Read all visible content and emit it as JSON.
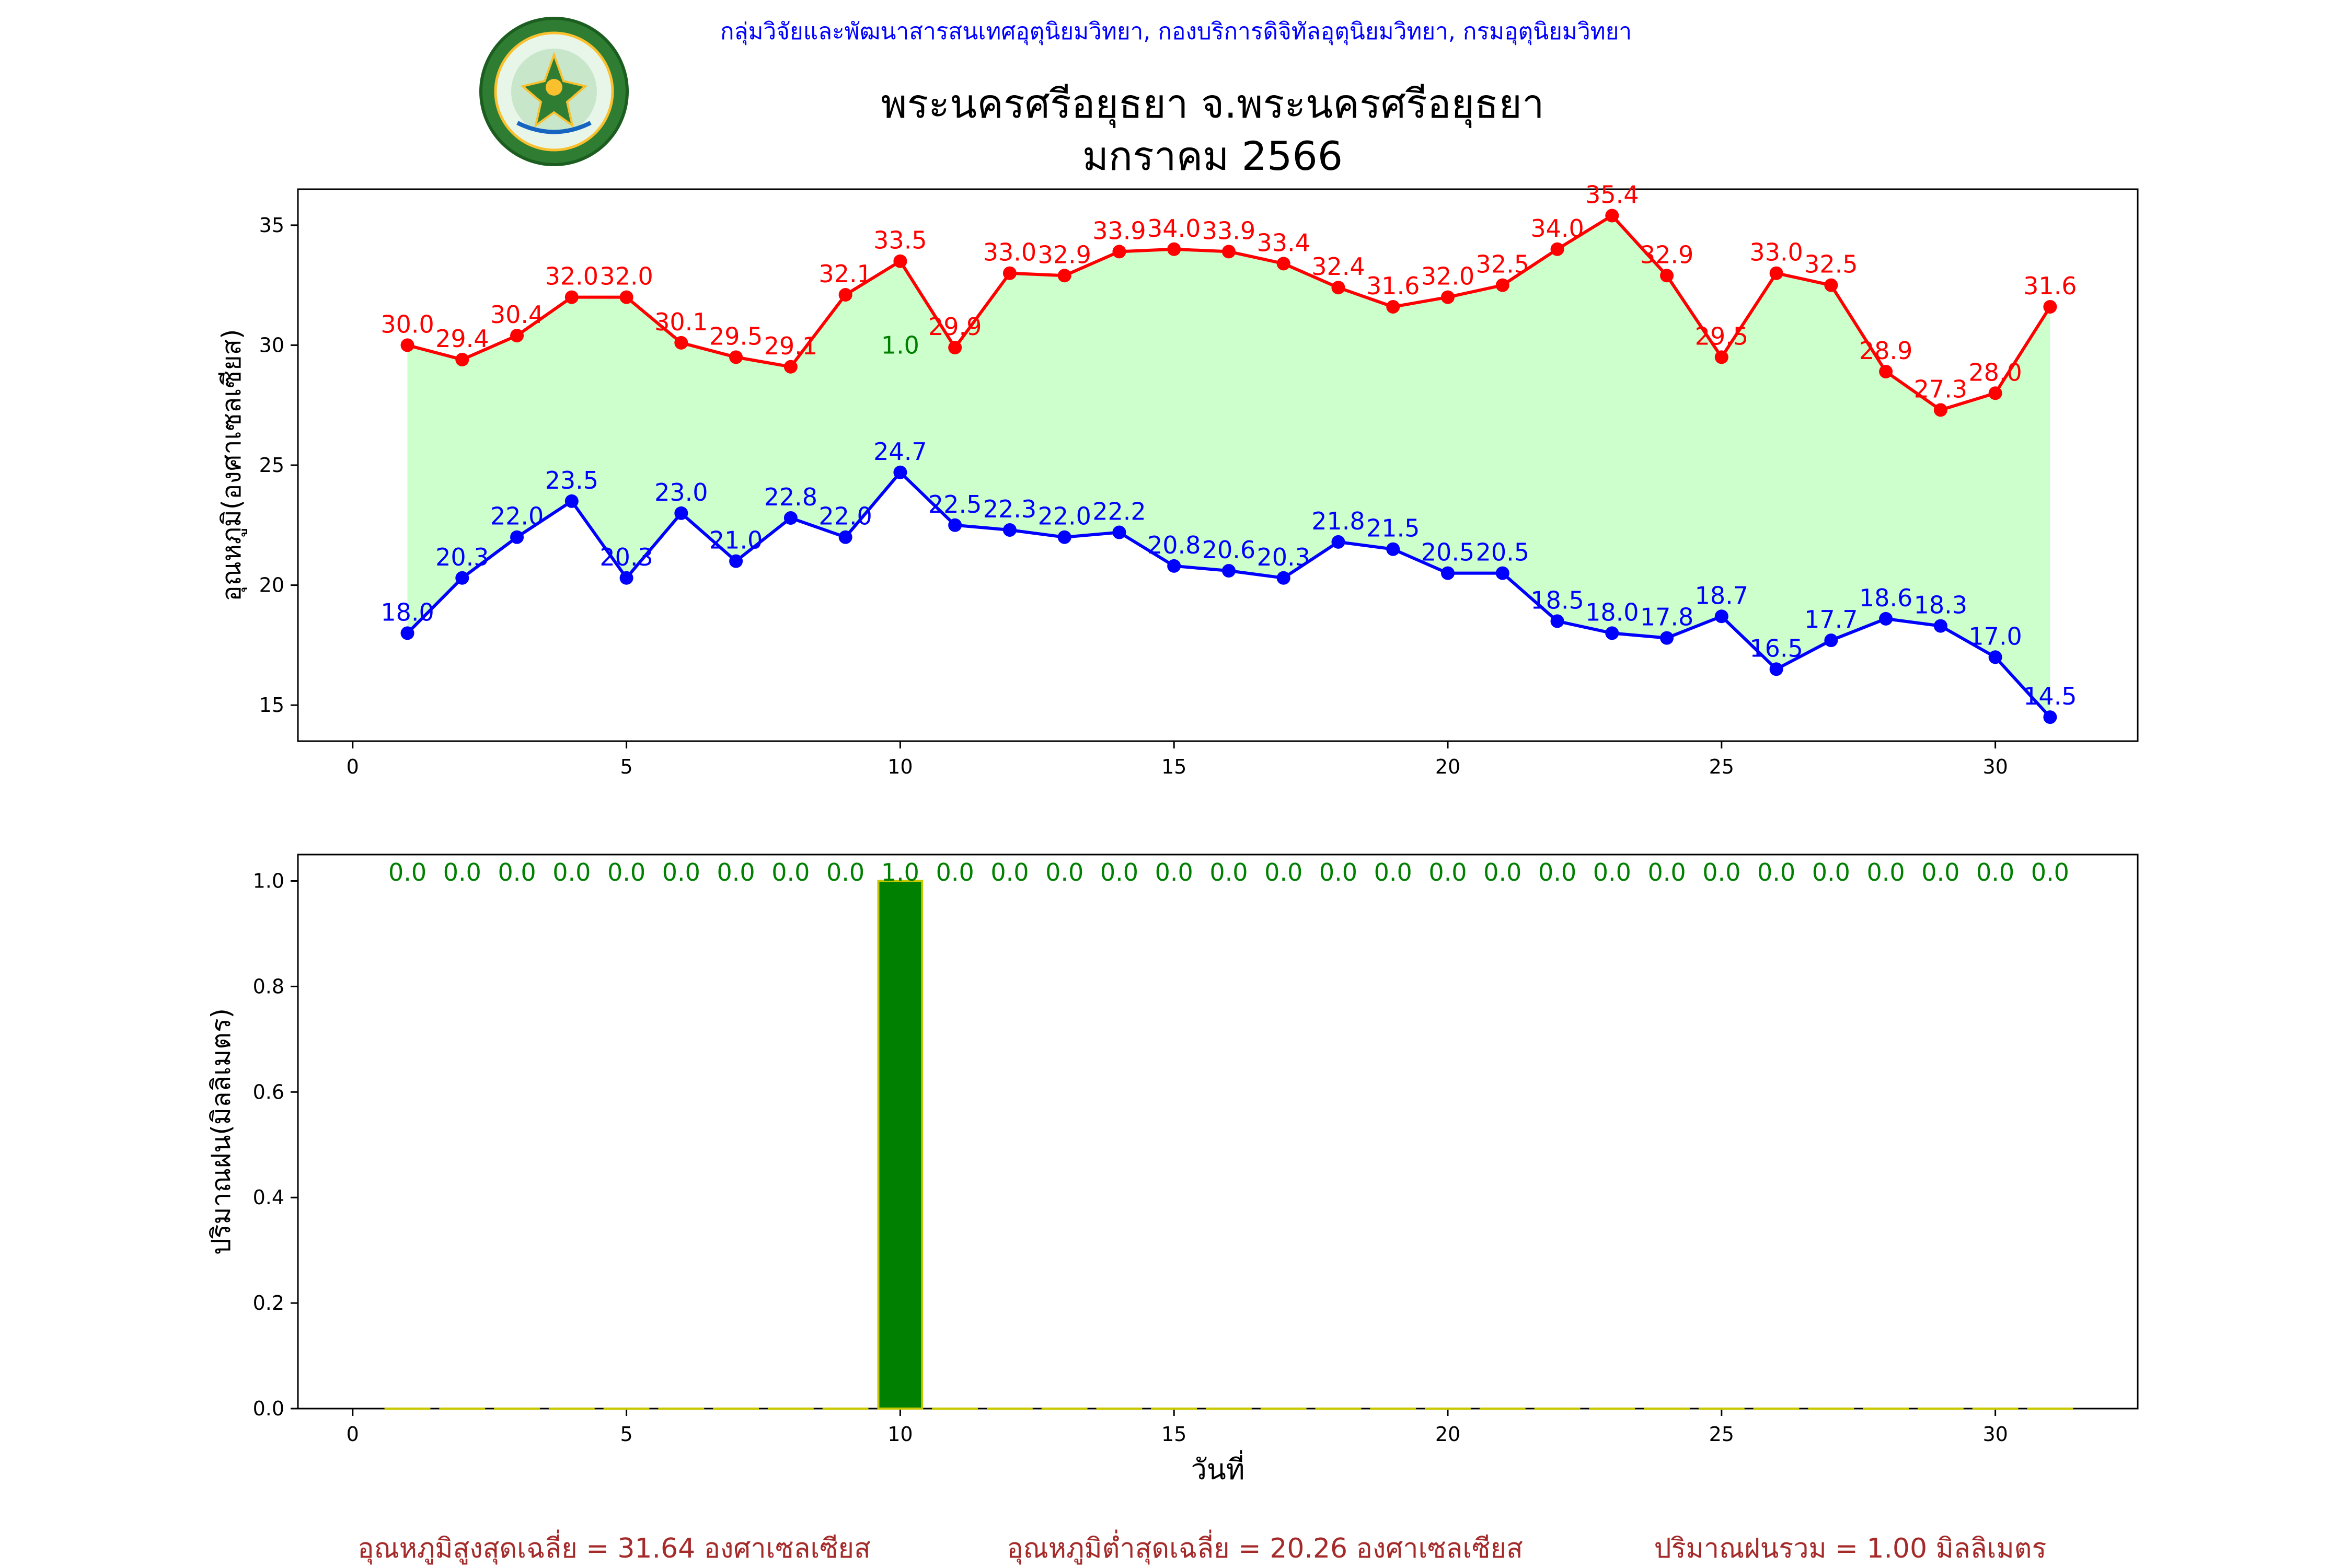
{
  "header": {
    "agency": "กลุ่มวิจัยและพัฒนาสารสนเทศอุตุนิยมวิทยา, กองบริการดิจิทัลอุตุนิยมวิทยา, กรมอุตุนิยมวิทยา",
    "title_line1": "พระนครศรีอยุธยา จ.พระนครศรีอยุธยา",
    "title_line2": "มกราคม 2566",
    "logo_text": "กรมอุตุนิยมวิทยา METEOROLOGICAL DEPARTMENT"
  },
  "colors": {
    "max": "#ff0000",
    "min": "#0000ff",
    "fill": "#ccffcc",
    "rain": "#008000",
    "rain_edge": "#c8c800",
    "agency_text": "#0000ff",
    "summary": "#a52a2a"
  },
  "chart_data": [
    {
      "type": "line",
      "ylabel": "อุณหภูมิ(องศาเซลเซียส)",
      "xlim": [
        -1,
        32.6
      ],
      "ylim": [
        13.5,
        36.5
      ],
      "xticks": [
        0,
        5,
        10,
        15,
        20,
        25,
        30
      ],
      "yticks": [
        15,
        20,
        25,
        30,
        35
      ],
      "fill_between": true,
      "x": [
        1,
        2,
        3,
        4,
        5,
        6,
        7,
        8,
        9,
        10,
        11,
        12,
        13,
        14,
        15,
        16,
        17,
        18,
        19,
        20,
        21,
        22,
        23,
        24,
        25,
        26,
        27,
        28,
        29,
        30,
        31
      ],
      "series": [
        {
          "key": "max",
          "values": [
            30.0,
            29.4,
            30.4,
            32.0,
            32.0,
            30.1,
            29.5,
            29.1,
            32.1,
            33.5,
            29.9,
            33.0,
            32.9,
            33.9,
            34.0,
            33.9,
            33.4,
            32.4,
            31.6,
            32.0,
            32.5,
            34.0,
            35.4,
            32.9,
            29.5,
            33.0,
            32.5,
            28.9,
            27.3,
            28.0,
            31.6
          ]
        },
        {
          "key": "min",
          "values": [
            18.0,
            20.3,
            22.0,
            23.5,
            20.3,
            23.0,
            21.0,
            22.8,
            22.0,
            24.7,
            22.5,
            22.3,
            22.0,
            22.2,
            20.8,
            20.6,
            20.3,
            21.8,
            21.5,
            20.5,
            20.5,
            18.5,
            18.0,
            17.8,
            18.7,
            16.5,
            17.7,
            18.6,
            18.3,
            17.0,
            14.5
          ]
        }
      ],
      "annotation": {
        "x": 10,
        "y": 30,
        "text": "1.0"
      }
    },
    {
      "type": "bar",
      "xlabel": "วันที่",
      "ylabel": "ปริมาณฝน(มิลลิเมตร)",
      "xlim": [
        -1,
        32.6
      ],
      "ylim": [
        0,
        1.05
      ],
      "xticks": [
        0,
        5,
        10,
        15,
        20,
        25,
        30
      ],
      "yticks": [
        0.0,
        0.2,
        0.4,
        0.6,
        0.8,
        1.0
      ],
      "x": [
        1,
        2,
        3,
        4,
        5,
        6,
        7,
        8,
        9,
        10,
        11,
        12,
        13,
        14,
        15,
        16,
        17,
        18,
        19,
        20,
        21,
        22,
        23,
        24,
        25,
        26,
        27,
        28,
        29,
        30,
        31
      ],
      "values": [
        0,
        0,
        0,
        0,
        0,
        0,
        0,
        0,
        0,
        1.0,
        0,
        0,
        0,
        0,
        0,
        0,
        0,
        0,
        0,
        0,
        0,
        0,
        0,
        0,
        0,
        0,
        0,
        0,
        0,
        0,
        0
      ]
    }
  ],
  "summary": {
    "avg_max": "อุณหภูมิสูงสุดเฉลี่ย = 31.64 องศาเซลเซียส",
    "avg_min": "อุณหภูมิต่ำสุดเฉลี่ย = 20.26 องศาเซลเซียส",
    "total_rain": "ปริมาณฝนรวม = 1.00 มิลลิเมตร"
  }
}
